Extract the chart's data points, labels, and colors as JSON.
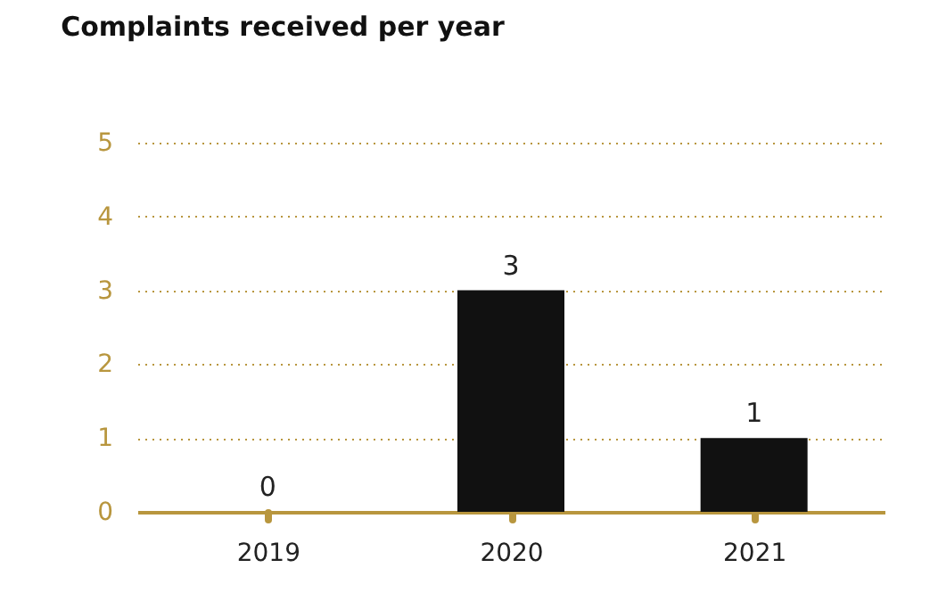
{
  "chart_data": {
    "type": "bar",
    "title": "Complaints received per year",
    "categories": [
      "2019",
      "2020",
      "2021"
    ],
    "values": [
      0,
      3,
      1
    ],
    "color": "#111111",
    "ylim": [
      0,
      5
    ],
    "yticks": [
      0,
      1,
      2,
      3,
      4,
      5
    ],
    "grid": "y",
    "data_labels": true
  }
}
